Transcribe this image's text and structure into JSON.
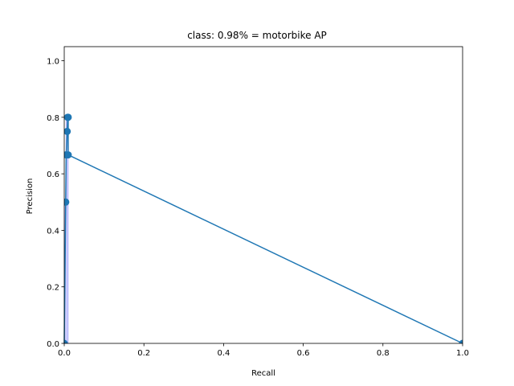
{
  "chart_data": {
    "type": "line",
    "title": "class: 0.98% = motorbike AP",
    "xlabel": "Recall",
    "ylabel": "Precision",
    "xlim": [
      0,
      1
    ],
    "ylim": [
      0,
      1.05
    ],
    "xticks": [
      0.0,
      0.2,
      0.4,
      0.6,
      0.8,
      1.0
    ],
    "yticks": [
      0.0,
      0.2,
      0.4,
      0.6,
      0.8,
      1.0
    ],
    "xtick_labels": [
      "0.0",
      "0.2",
      "0.4",
      "0.6",
      "0.8",
      "1.0"
    ],
    "ytick_labels": [
      "0.0",
      "0.2",
      "0.4",
      "0.6",
      "0.8",
      "1.0"
    ],
    "grid": false,
    "series": [
      {
        "x": [
          0.0,
          0.0037,
          0.0049,
          0.0074,
          0.0086,
          0.0099,
          0.0099,
          1.0
        ],
        "y": [
          0.0,
          0.5,
          0.667,
          0.75,
          0.8,
          0.8,
          0.667,
          0.0
        ],
        "markers": true,
        "color": "#1f77b4"
      }
    ],
    "area": {
      "x": [
        0.0,
        0.0037,
        0.0049,
        0.0099,
        0.0099
      ],
      "y": [
        0.5,
        0.5,
        0.8,
        0.8,
        0.0
      ],
      "color": "#0000ff",
      "opacity": 0.2
    }
  }
}
